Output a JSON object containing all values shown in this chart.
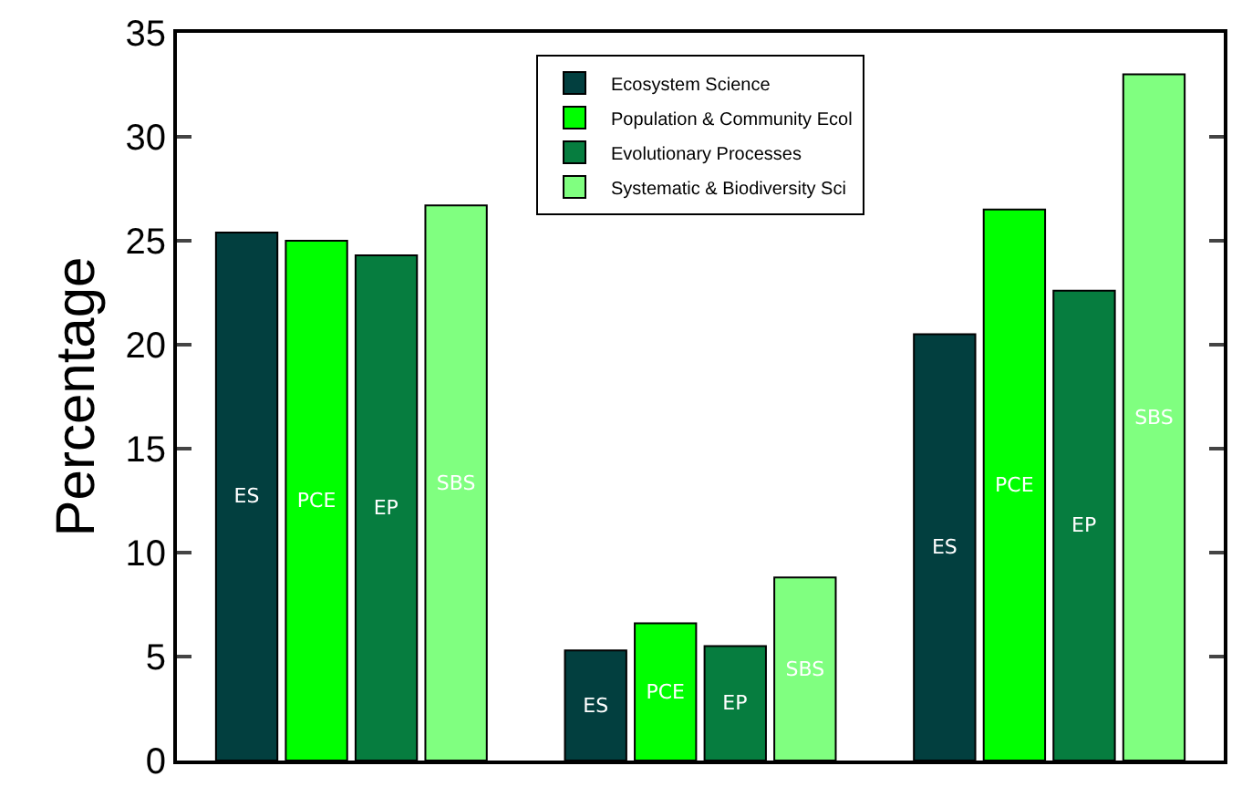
{
  "chart_data": {
    "type": "bar",
    "ylabel": "Percentage",
    "categories": [
      null,
      null,
      null
    ],
    "series": [
      {
        "name": "Ecosystem Science",
        "color": "#023f3f",
        "values": [
          25.4,
          5.3,
          20.5
        ],
        "value_labels": [
          "ES",
          "ES",
          "ES"
        ]
      },
      {
        "name": "Population & Community Ecol",
        "color": "#00ff00",
        "values": [
          25.0,
          6.6,
          26.5
        ],
        "value_labels": [
          "PCE",
          "PCE",
          "PCE"
        ]
      },
      {
        "name": "Evolutionary Processes",
        "color": "#067d3f",
        "values": [
          24.3,
          5.5,
          22.6
        ],
        "value_labels": [
          "EP",
          "EP",
          "EP"
        ]
      },
      {
        "name": "Systematic & Biodiversity Sci",
        "color": "#80ff80",
        "values": [
          26.7,
          8.8,
          33.0
        ],
        "value_labels": [
          "SBS",
          "SBS",
          "SBS"
        ]
      }
    ],
    "ylim": [
      0,
      35
    ],
    "yticks": [
      0,
      5,
      10,
      15,
      20,
      25,
      30,
      35
    ],
    "legend": "top"
  }
}
